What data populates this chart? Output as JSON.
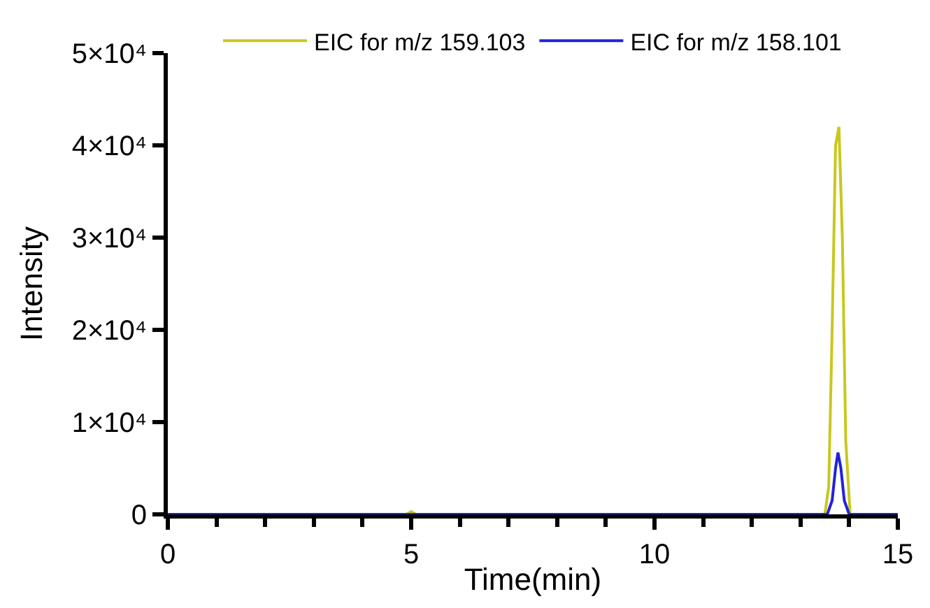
{
  "chart_data": {
    "type": "line",
    "xlabel": "Time(min)",
    "ylabel": "Intensity",
    "xlim": [
      0,
      15
    ],
    "xticks": [
      0,
      5,
      10,
      15
    ],
    "ylim": [
      0,
      50000
    ],
    "yticks": [
      0,
      {
        "value": 10000,
        "label": "1×10⁴"
      },
      {
        "value": 20000,
        "label": "2×10⁴"
      },
      {
        "value": 30000,
        "label": "3×10⁴"
      },
      {
        "value": 40000,
        "label": "4×10⁴"
      },
      {
        "value": 50000,
        "label": "5×10⁴"
      }
    ],
    "legend": "top",
    "marker": "none",
    "line_style": "solid",
    "series": [
      {
        "name": "EIC for m/z 159.103",
        "color": "#c8c81e",
        "x": [
          0,
          4.9,
          5.0,
          5.1,
          13.5,
          13.58,
          13.65,
          13.72,
          13.79,
          13.86,
          13.93,
          14.02,
          15
        ],
        "values": [
          0,
          0,
          300,
          0,
          0,
          3000,
          20000,
          40000,
          42000,
          30000,
          8000,
          0,
          0
        ]
      },
      {
        "name": "EIC for m/z 158.101",
        "color": "#2222dd",
        "x": [
          0,
          13.55,
          13.65,
          13.72,
          13.77,
          13.83,
          13.9,
          14.0,
          15
        ],
        "values": [
          0,
          0,
          1500,
          5000,
          6700,
          5000,
          1500,
          0,
          0
        ]
      }
    ]
  }
}
